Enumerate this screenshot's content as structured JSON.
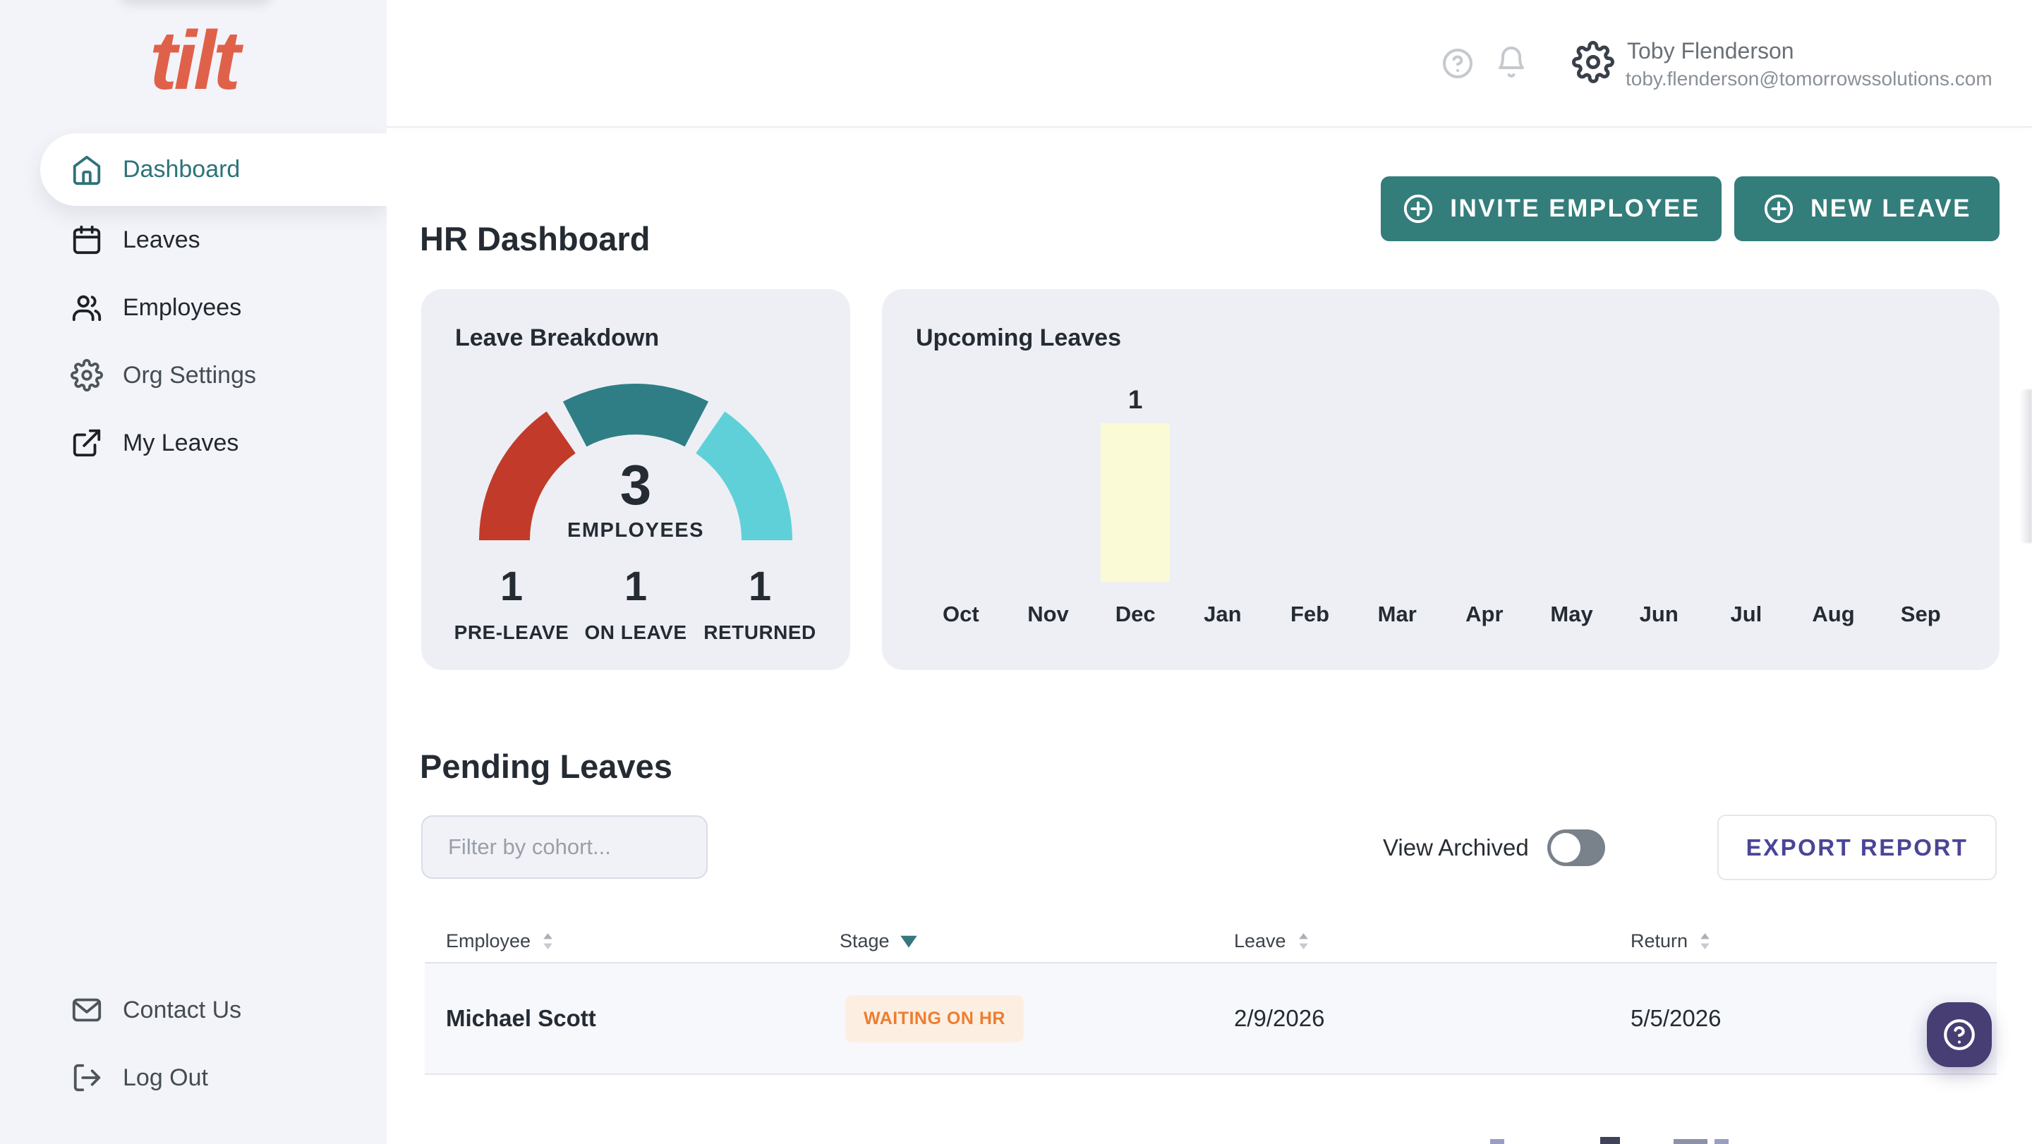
{
  "sidebar": {
    "logo": "tilt",
    "items": [
      {
        "label": "Dashboard",
        "icon": "home-icon",
        "active": true
      },
      {
        "label": "Leaves",
        "icon": "calendar-icon"
      },
      {
        "label": "Employees",
        "icon": "users-icon"
      },
      {
        "label": "Org Settings",
        "icon": "gear-icon",
        "chevron": true,
        "gray": true
      },
      {
        "label": "My Leaves",
        "icon": "external-link-icon"
      }
    ],
    "footer_items": [
      {
        "label": "Contact Us",
        "icon": "mail-icon",
        "gray": true
      },
      {
        "label": "Log Out",
        "icon": "logout-icon",
        "gray": true
      }
    ]
  },
  "topbar": {
    "user_name": "Toby Flenderson",
    "user_email": "toby.flenderson@tomorrowssolutions.com"
  },
  "page": {
    "title": "HR Dashboard",
    "invite_button": "INVITE EMPLOYEE",
    "new_leave_button": "NEW LEAVE"
  },
  "chart_data": [
    {
      "type": "gauge",
      "title": "Leave Breakdown",
      "center_value": "3",
      "center_label": "EMPLOYEES",
      "segments": [
        {
          "label": "PRE-LEAVE",
          "value": 1,
          "color": "#c23b2a"
        },
        {
          "label": "ON LEAVE",
          "value": 1,
          "color": "#2f7e85"
        },
        {
          "label": "RETURNED",
          "value": 1,
          "color": "#5fd0d8"
        }
      ]
    },
    {
      "type": "bar",
      "title": "Upcoming Leaves",
      "categories": [
        "Oct",
        "Nov",
        "Dec",
        "Jan",
        "Feb",
        "Mar",
        "Apr",
        "May",
        "Jun",
        "Jul",
        "Aug",
        "Sep"
      ],
      "values": [
        0,
        0,
        1,
        0,
        0,
        0,
        0,
        0,
        0,
        0,
        0,
        0
      ],
      "bar_color": "#fbfad6",
      "ylim": [
        0,
        1
      ],
      "legend": "none",
      "grid": false
    }
  ],
  "pending": {
    "title": "Pending Leaves",
    "filter_placeholder": "Filter by cohort...",
    "view_archived_label": "View Archived",
    "toggle_state": "off",
    "export_button": "EXPORT REPORT"
  },
  "table": {
    "columns": [
      {
        "label": "Employee",
        "sort": "both"
      },
      {
        "label": "Stage",
        "sort": "desc-active"
      },
      {
        "label": "Leave",
        "sort": "both"
      },
      {
        "label": "Return",
        "sort": "both"
      }
    ],
    "rows": [
      {
        "employee": "Michael Scott",
        "stage": "WAITING ON HR",
        "leave": "2/9/2026",
        "return": "5/5/2026"
      }
    ]
  },
  "colors": {
    "teal_button": "#337d7b",
    "logo_coral": "#e0614a",
    "sidebar_bg": "#f3f4f9",
    "card_bg": "#edeff5",
    "badge_bg": "#fcefe2",
    "badge_text": "#ed7d31",
    "export_text": "#4a4597",
    "fab_bg": "#473e73",
    "bar_yellow": "#fbfad6",
    "gauge_red": "#c23b2a",
    "gauge_teal": "#2f7e85",
    "gauge_cyan": "#5fd0d8"
  }
}
